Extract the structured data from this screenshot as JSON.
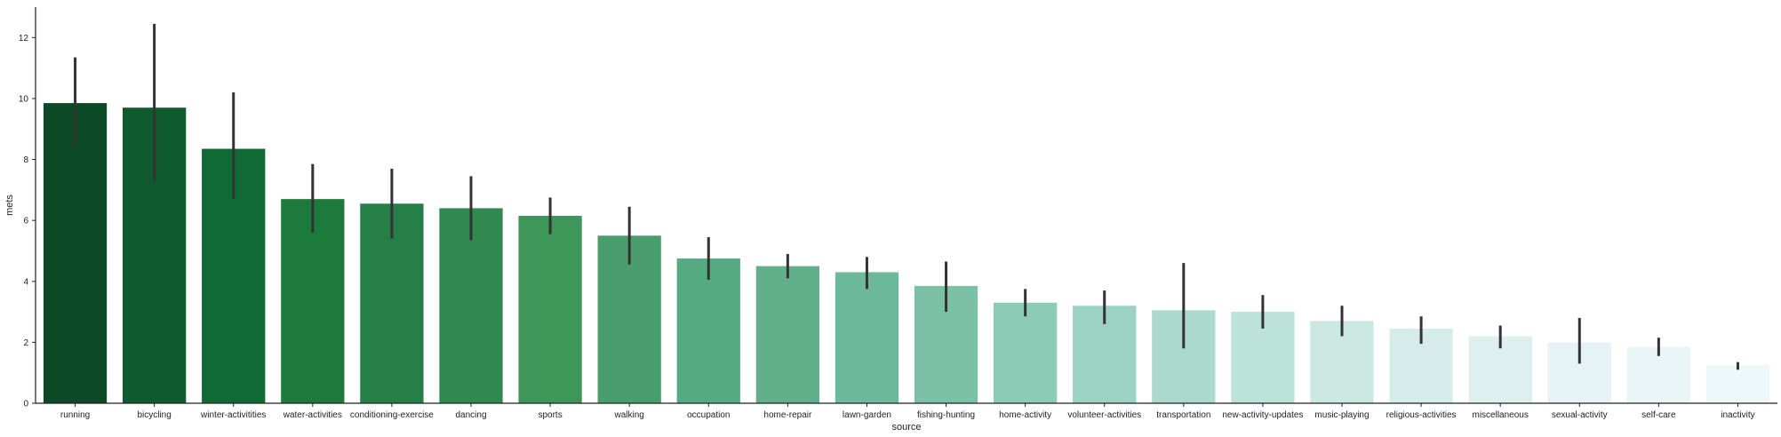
{
  "chart_data": {
    "type": "bar",
    "xlabel": "source",
    "ylabel": "mets",
    "ylim": [
      0,
      13
    ],
    "yticks": [
      0,
      2,
      4,
      6,
      8,
      10,
      12
    ],
    "grid": false,
    "categories": [
      "running",
      "bicycling",
      "winter-activitities",
      "water-activities",
      "conditioning-exercise",
      "dancing",
      "sports",
      "walking",
      "occupation",
      "home-repair",
      "lawn-garden",
      "fishing-hunting",
      "home-activity",
      "volunteer-activities",
      "transportation",
      "new-activity-updates",
      "music-playing",
      "religious-activities",
      "miscellaneous",
      "sexual-activity",
      "self-care",
      "inactivity"
    ],
    "values": [
      9.85,
      9.7,
      8.35,
      6.7,
      6.55,
      6.4,
      6.15,
      5.5,
      4.75,
      4.5,
      4.3,
      3.85,
      3.3,
      3.2,
      3.05,
      3.0,
      2.7,
      2.45,
      2.2,
      2.0,
      1.85,
      1.25
    ],
    "error_low": [
      8.4,
      7.3,
      6.7,
      5.6,
      5.4,
      5.35,
      5.55,
      4.55,
      4.05,
      4.1,
      3.75,
      3.0,
      2.85,
      2.6,
      1.8,
      2.45,
      2.2,
      1.95,
      1.8,
      1.3,
      1.55,
      1.1
    ],
    "error_high": [
      11.35,
      12.45,
      10.2,
      7.85,
      7.7,
      7.45,
      6.75,
      6.45,
      5.45,
      4.9,
      4.8,
      4.65,
      3.75,
      3.7,
      4.6,
      3.55,
      3.2,
      2.85,
      2.55,
      2.8,
      2.15,
      1.35
    ],
    "colors": [
      "#0b4a24",
      "#0f5a2e",
      "#106a34",
      "#1b7a3c",
      "#267f46",
      "#31894f",
      "#3e9659",
      "#4a9e6e",
      "#54aa81",
      "#62b08b",
      "#6bb89a",
      "#7dc0a8",
      "#8ccbb5",
      "#9cd2c3",
      "#abd9ce",
      "#bde2d8",
      "#cbe8e2",
      "#d5ecea",
      "#ddf0ef",
      "#e5f3f6",
      "#e9f5f7",
      "#eef7f9"
    ],
    "error_color": "#333333"
  }
}
